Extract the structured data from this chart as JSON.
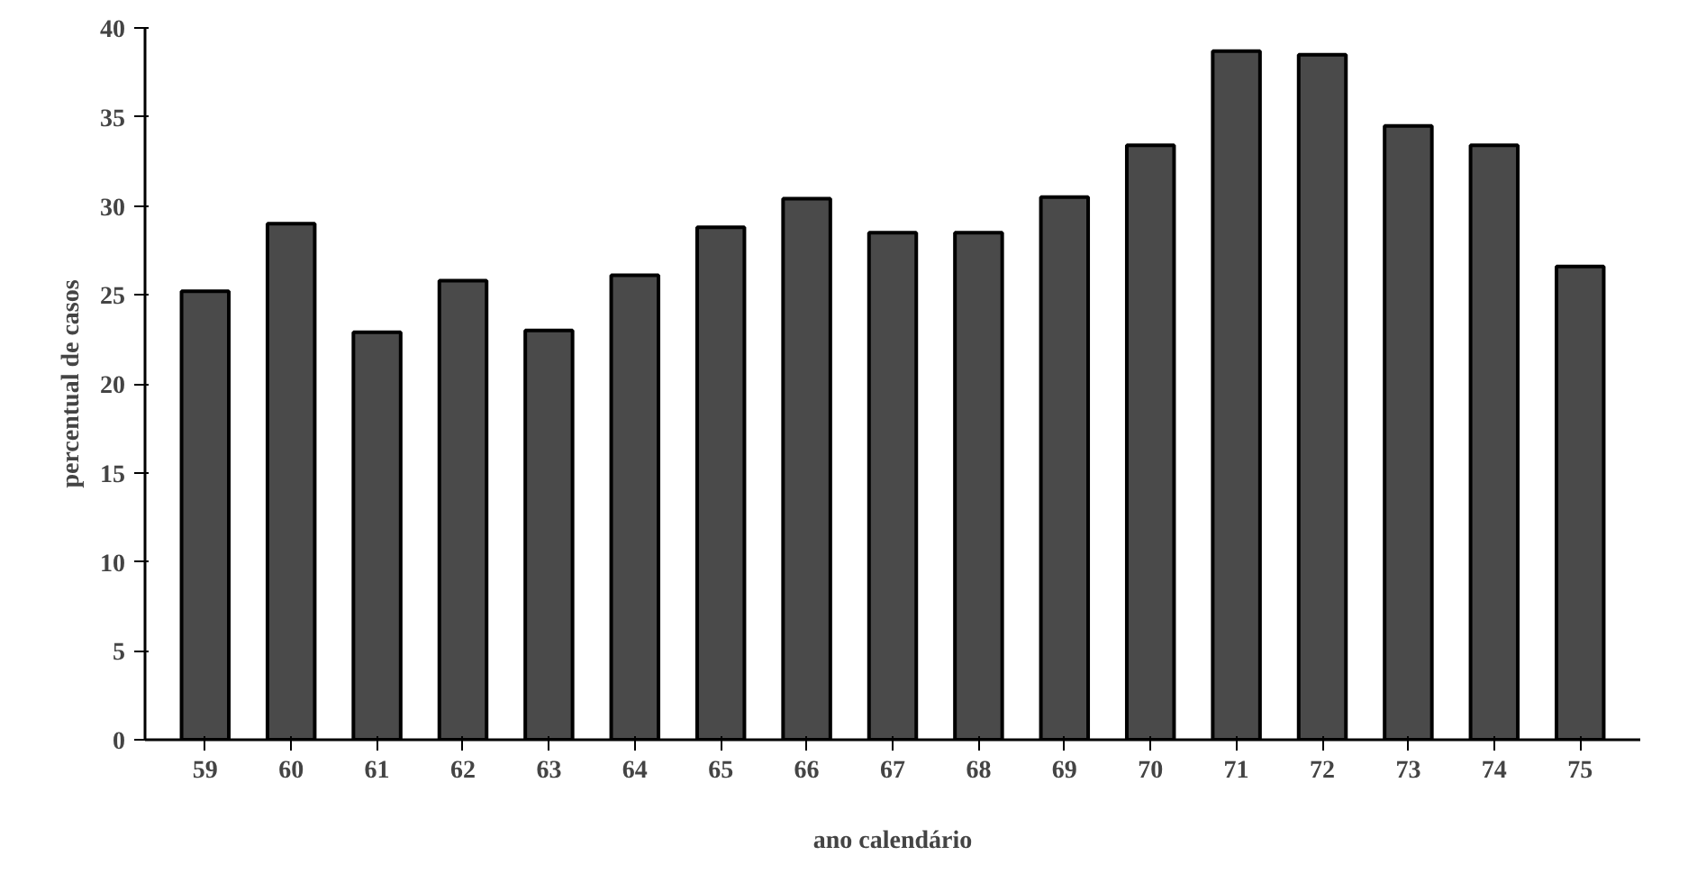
{
  "chart_data": {
    "type": "bar",
    "xlabel": "ano calendário",
    "ylabel": "percentual de casos",
    "categories": [
      "59",
      "60",
      "61",
      "62",
      "63",
      "64",
      "65",
      "66",
      "67",
      "68",
      "69",
      "70",
      "71",
      "72",
      "73",
      "74",
      "75"
    ],
    "values": [
      25.2,
      29.0,
      22.9,
      25.8,
      23.0,
      26.1,
      28.8,
      30.4,
      28.5,
      28.5,
      30.5,
      33.4,
      38.7,
      38.5,
      34.5,
      33.4,
      26.6
    ],
    "color": "#4a4a4a",
    "ylim": [
      0,
      40
    ],
    "yticks": [
      0,
      5,
      10,
      15,
      20,
      25,
      30,
      35,
      40
    ],
    "grid": false
  }
}
